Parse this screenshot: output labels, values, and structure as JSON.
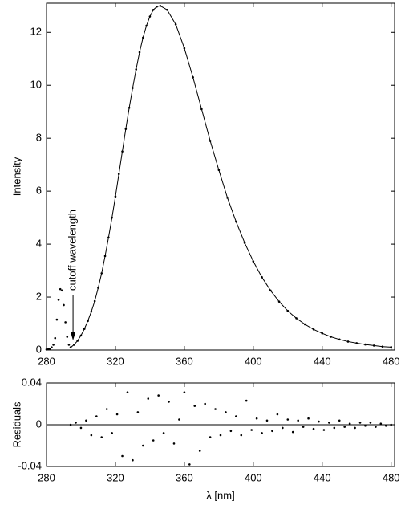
{
  "chart_data": [
    {
      "type": "scatter",
      "color": "#000000",
      "ylabel": "Intensity",
      "annotation": "cutoff  wavelength",
      "cutoff": 294,
      "xlim": [
        280,
        482
      ],
      "ylim": [
        0,
        13.1
      ],
      "xticks": [
        280,
        320,
        360,
        400,
        440,
        480
      ],
      "yticks": [
        0,
        2,
        4,
        6,
        8,
        10,
        12
      ],
      "x": [
        280,
        281,
        282,
        283,
        284,
        285,
        286,
        287,
        288,
        289,
        290,
        291,
        292,
        293,
        294,
        296,
        298,
        300,
        302,
        304,
        306,
        308,
        310,
        312,
        314,
        316,
        318,
        320,
        322,
        324,
        326,
        328,
        330,
        332,
        334,
        336,
        338,
        340,
        342,
        344,
        346,
        350,
        355,
        360,
        365,
        370,
        375,
        380,
        385,
        390,
        395,
        400,
        405,
        410,
        415,
        420,
        425,
        430,
        435,
        440,
        445,
        450,
        455,
        460,
        465,
        470,
        475,
        480
      ],
      "values": [
        0.02,
        0.03,
        0.05,
        0.1,
        0.2,
        0.45,
        1.15,
        1.9,
        2.3,
        2.25,
        1.7,
        1.05,
        0.5,
        0.2,
        0.1,
        0.2,
        0.35,
        0.55,
        0.8,
        1.1,
        1.45,
        1.85,
        2.35,
        2.9,
        3.55,
        4.25,
        5.0,
        5.8,
        6.65,
        7.5,
        8.35,
        9.15,
        9.9,
        10.6,
        11.25,
        11.8,
        12.25,
        12.6,
        12.85,
        12.97,
        13.0,
        12.85,
        12.3,
        11.4,
        10.3,
        9.1,
        7.9,
        6.8,
        5.75,
        4.85,
        4.05,
        3.35,
        2.75,
        2.25,
        1.83,
        1.48,
        1.2,
        0.97,
        0.78,
        0.63,
        0.5,
        0.4,
        0.32,
        0.26,
        0.21,
        0.17,
        0.13,
        0.11
      ]
    },
    {
      "type": "scatter",
      "color": "#000000",
      "ylabel": "Residuals",
      "xlabel": "λ [nm]",
      "xlim": [
        280,
        482
      ],
      "ylim": [
        -0.04,
        0.04
      ],
      "xticks": [
        280,
        320,
        360,
        400,
        440,
        480
      ],
      "yticks": [
        -0.04,
        0,
        0.04
      ],
      "x": [
        294,
        297,
        300,
        303,
        306,
        309,
        312,
        315,
        318,
        321,
        324,
        327,
        330,
        333,
        336,
        339,
        342,
        345,
        348,
        351,
        354,
        357,
        360,
        363,
        366,
        369,
        372,
        375,
        378,
        381,
        384,
        387,
        390,
        393,
        396,
        399,
        402,
        405,
        408,
        411,
        414,
        417,
        420,
        423,
        426,
        429,
        432,
        435,
        438,
        441,
        444,
        447,
        450,
        453,
        456,
        459,
        462,
        465,
        468,
        471,
        474,
        477,
        480
      ],
      "values": [
        0.0,
        0.002,
        -0.003,
        0.004,
        -0.01,
        0.008,
        -0.012,
        0.015,
        -0.008,
        0.01,
        -0.03,
        0.031,
        -0.034,
        0.012,
        -0.02,
        0.025,
        -0.015,
        0.028,
        -0.008,
        0.022,
        -0.018,
        0.005,
        0.031,
        -0.038,
        0.018,
        -0.025,
        0.02,
        -0.012,
        0.015,
        -0.01,
        0.012,
        -0.006,
        0.008,
        -0.01,
        0.023,
        -0.005,
        0.006,
        -0.008,
        0.004,
        -0.006,
        0.01,
        -0.003,
        0.005,
        -0.007,
        0.004,
        -0.002,
        0.006,
        -0.004,
        0.003,
        -0.005,
        0.002,
        -0.003,
        0.004,
        -0.002,
        0.001,
        -0.003,
        0.002,
        -0.001,
        0.002,
        -0.002,
        0.001,
        -0.001,
        0.0
      ]
    }
  ]
}
